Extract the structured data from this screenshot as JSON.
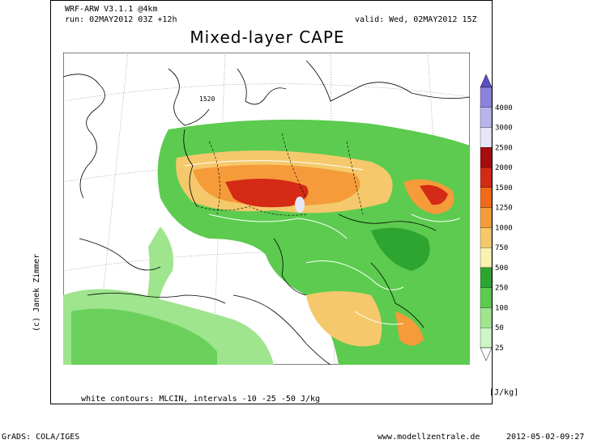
{
  "header": {
    "model": "WRF-ARW V3.1.1 @4km",
    "run": "run: 02MAY2012 03Z +12h",
    "valid": "valid: Wed, 02MAY2012 15Z",
    "title": "Mixed-layer CAPE"
  },
  "map": {
    "contour_label": "1520",
    "credit": "(c) Janek Zimmer",
    "footnote": "white contours: MLCIN, intervals -10 -25 -50 J/kg"
  },
  "legend": {
    "unit": "[J/kg]",
    "levels": [
      "25",
      "50",
      "100",
      "250",
      "500",
      "750",
      "1000",
      "1250",
      "1500",
      "2000",
      "2500",
      "3000",
      "4000"
    ],
    "colors": [
      "#ffffff",
      "#cdf5c5",
      "#9ee58e",
      "#5ccb4f",
      "#2fa531",
      "#f8f2b0",
      "#f5c96b",
      "#f59b3a",
      "#f06a18",
      "#d42a16",
      "#a50d10",
      "#e6e6f6",
      "#b8b5ea",
      "#8a83dc",
      "#5a50c8"
    ]
  },
  "footer": {
    "left": "GrADS: COLA/IGES",
    "center": "www.modellzentrale.de",
    "right": "2012-05-02-09:27"
  }
}
